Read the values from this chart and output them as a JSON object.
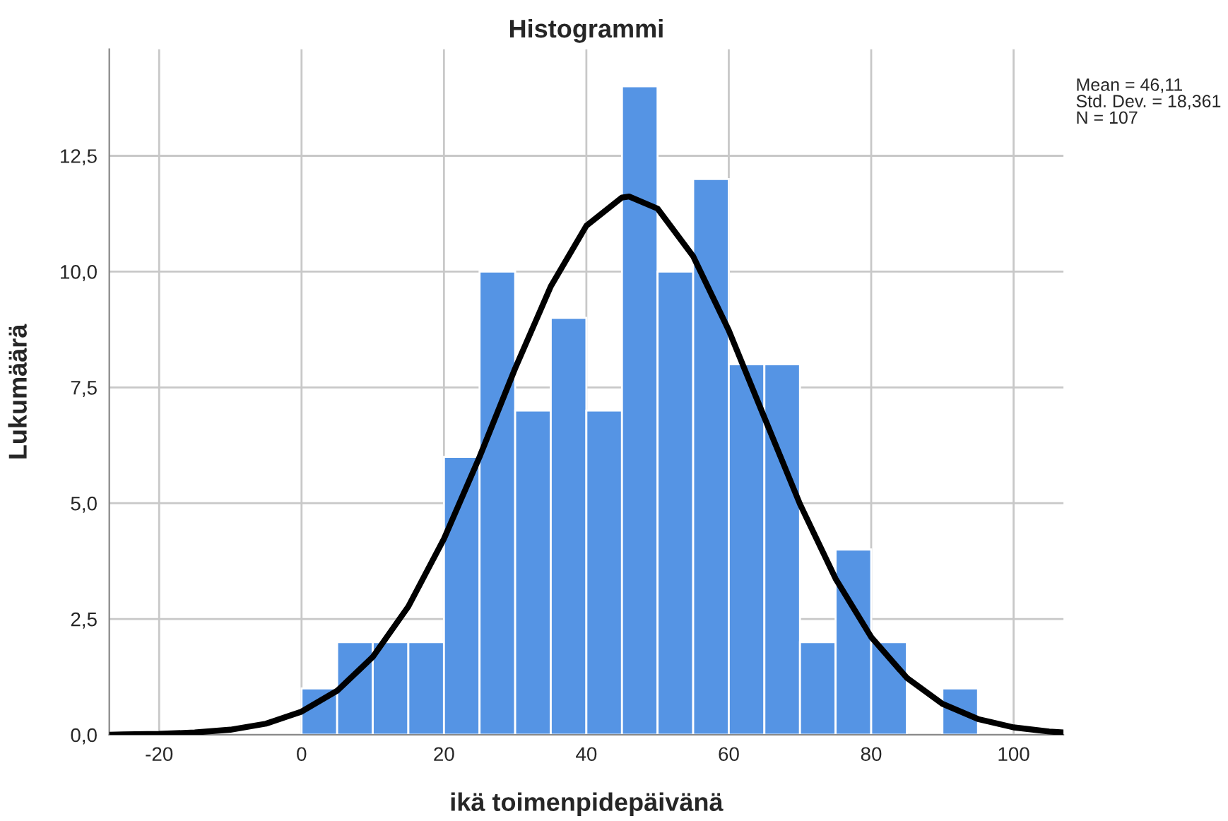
{
  "chart_data": {
    "type": "histogram",
    "title": "Histogrammi",
    "xlabel": "ikä toimenpidepäivänä",
    "ylabel": "Lukumäärä",
    "bins": [
      0,
      5,
      10,
      15,
      20,
      25,
      30,
      35,
      40,
      45,
      50,
      55,
      60,
      65,
      70,
      75,
      80,
      85,
      90,
      95
    ],
    "values": [
      1,
      2,
      2,
      2,
      6,
      10,
      7,
      9,
      7,
      14,
      10,
      12,
      8,
      8,
      2,
      4,
      2,
      0,
      1
    ],
    "color": "#5594e4",
    "series": [
      {
        "type": "line",
        "color": "#000000",
        "x": [
          -27,
          -25,
          -20,
          -15,
          -10,
          -5,
          0,
          5,
          10,
          15,
          20,
          25,
          30,
          35,
          40,
          45,
          46,
          50,
          55,
          60,
          65,
          70,
          75,
          80,
          85,
          90,
          95,
          100,
          105,
          107
        ],
        "values": [
          0,
          0.01,
          0.02,
          0.05,
          0.11,
          0.24,
          0.5,
          0.95,
          1.68,
          2.77,
          4.23,
          6.0,
          7.91,
          9.68,
          10.99,
          11.6,
          11.62,
          11.36,
          10.33,
          8.73,
          6.85,
          4.98,
          3.37,
          2.11,
          1.23,
          0.67,
          0.34,
          0.16,
          0.07,
          0.05
        ]
      }
    ],
    "xlim": [
      -27,
      107
    ],
    "xticks": [
      -20,
      0,
      20,
      40,
      60,
      80,
      100
    ],
    "ylim": [
      0,
      14.8
    ],
    "yticks": [
      {
        "value": 0,
        "label": "0,0"
      },
      {
        "value": 2.5,
        "label": "2,5"
      },
      {
        "value": 5,
        "label": "5,0"
      },
      {
        "value": 7.5,
        "label": "7,5"
      },
      {
        "value": 10,
        "label": "10,0"
      },
      {
        "value": 12.5,
        "label": "12,5"
      }
    ],
    "grid": true,
    "annotations": [
      "Mean = 46,11",
      "Std. Dev. = 18,361",
      "N = 107"
    ]
  }
}
